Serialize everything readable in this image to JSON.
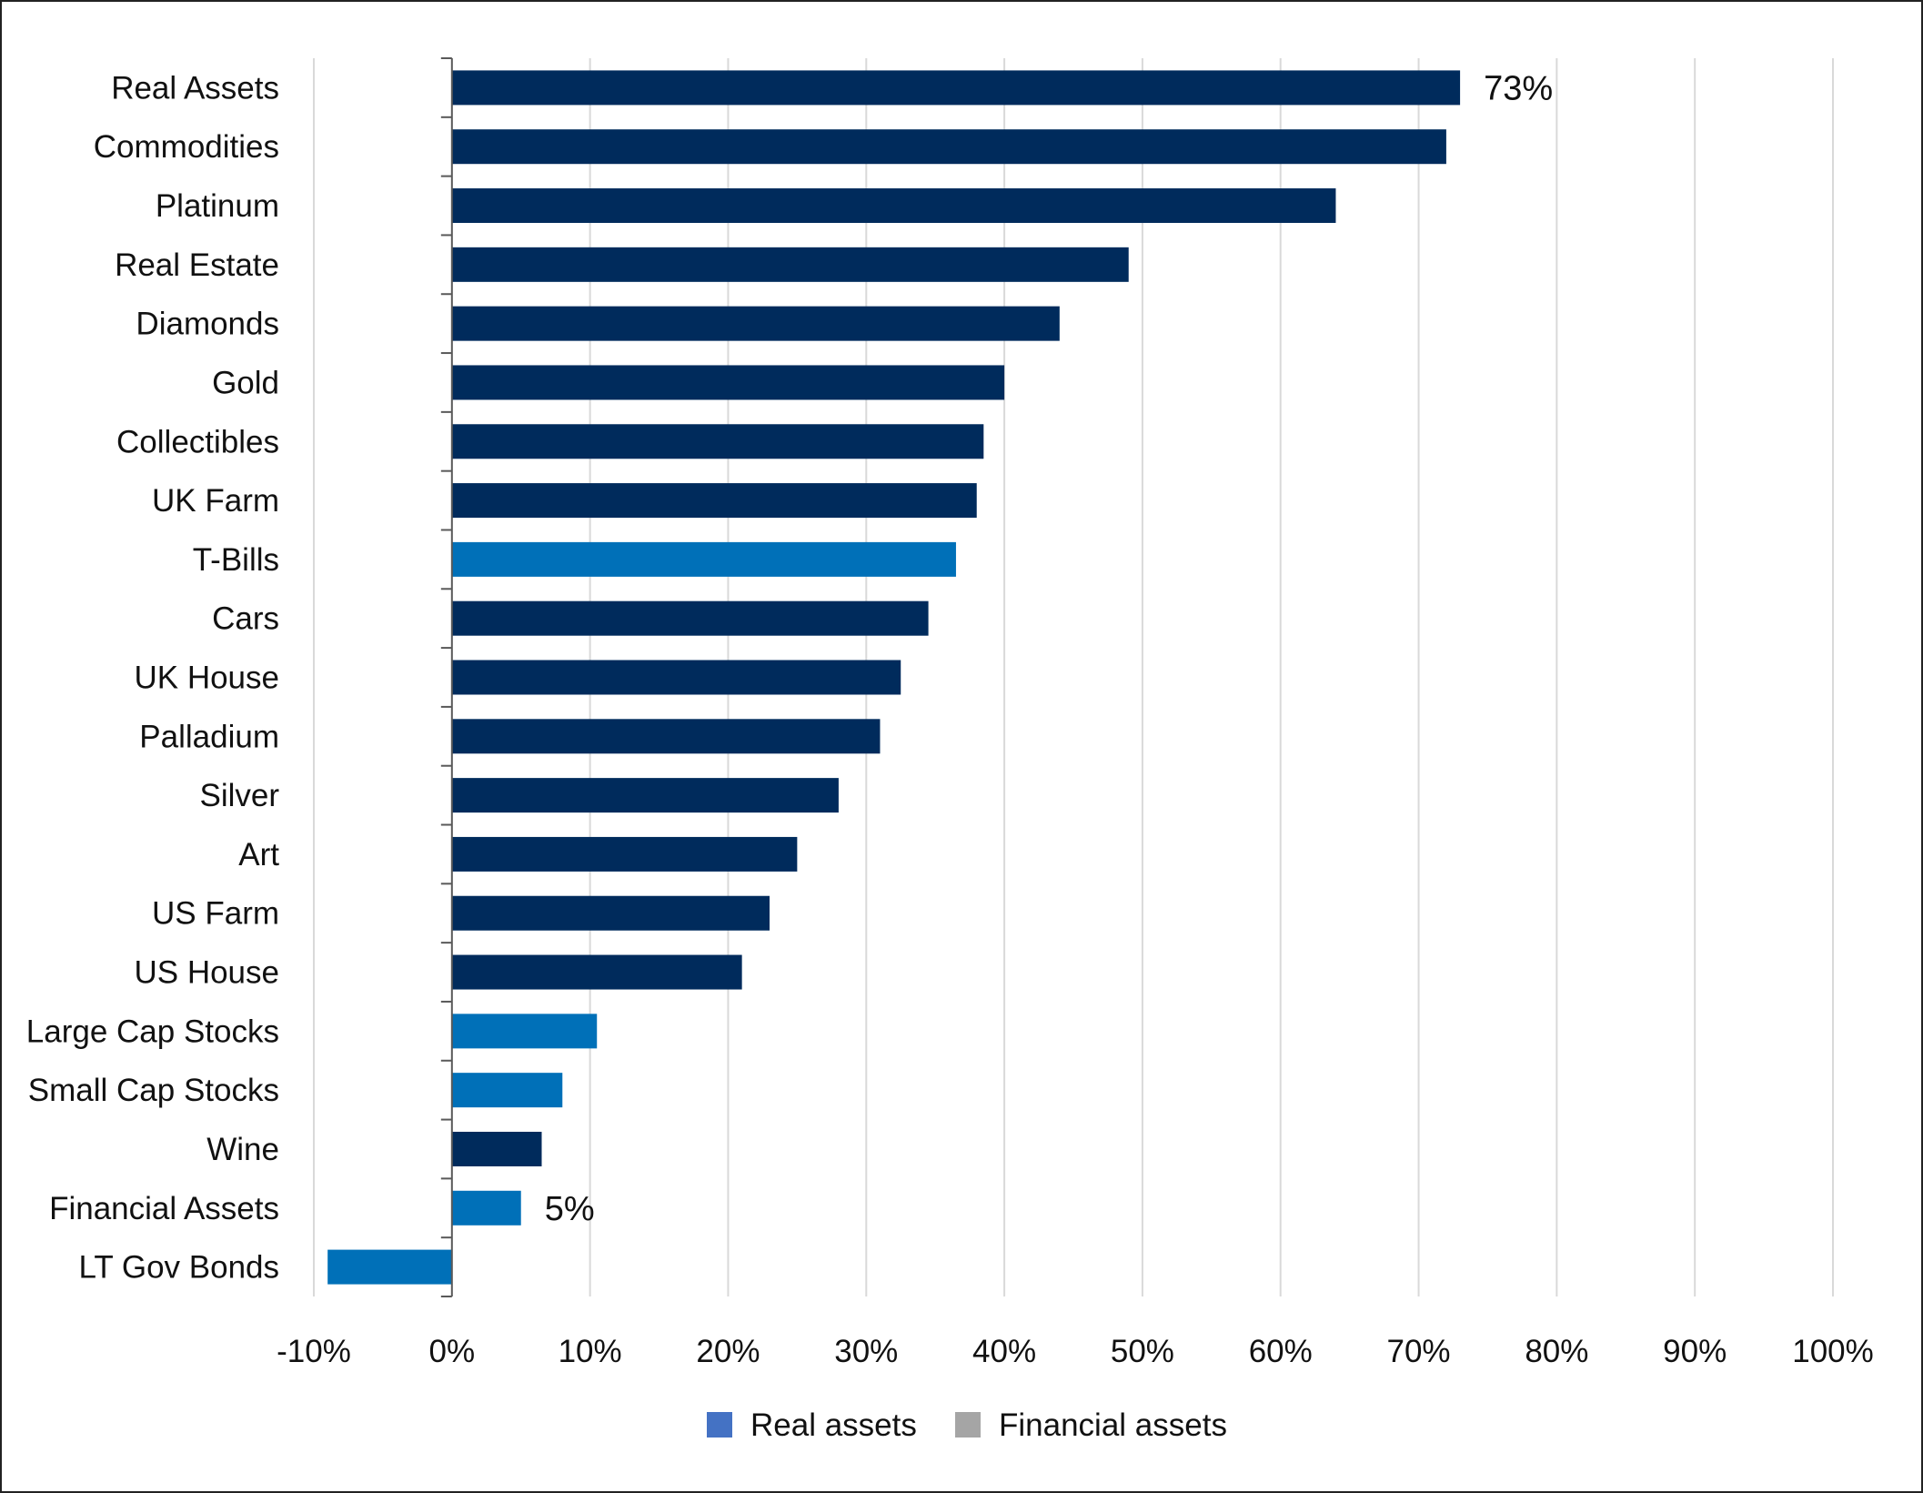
{
  "chart_data": {
    "type": "bar",
    "orientation": "horizontal",
    "title": "",
    "xlabel": "",
    "ylabel": "",
    "xlim": [
      -0.1,
      1.0
    ],
    "x_tick_step": 0.1,
    "x_tick_format": "percent",
    "x_ticks": [
      "-10%",
      "0%",
      "10%",
      "20%",
      "30%",
      "40%",
      "50%",
      "60%",
      "70%",
      "80%",
      "90%",
      "100%"
    ],
    "grid": "vertical",
    "legend_position": "bottom",
    "categories": [
      "Real Assets",
      "Commodities",
      "Platinum",
      "Real Estate",
      "Diamonds",
      "Gold",
      "Collectibles",
      "UK Farm",
      "T-Bills",
      "Cars",
      "UK House",
      "Palladium",
      "Silver",
      "Art",
      "US Farm",
      "US House",
      "Large Cap Stocks",
      "Small Cap Stocks",
      "Wine",
      "Financial Assets",
      "LT Gov Bonds"
    ],
    "values": [
      0.73,
      0.72,
      0.64,
      0.49,
      0.44,
      0.4,
      0.385,
      0.38,
      0.365,
      0.345,
      0.325,
      0.31,
      0.28,
      0.25,
      0.23,
      0.21,
      0.105,
      0.08,
      0.065,
      0.05,
      -0.09
    ],
    "group": [
      "real",
      "real",
      "real",
      "real",
      "real",
      "real",
      "real",
      "real",
      "financial",
      "real",
      "real",
      "real",
      "real",
      "real",
      "real",
      "real",
      "financial",
      "financial",
      "real",
      "financial",
      "financial"
    ],
    "data_labels": [
      {
        "category": "Real Assets",
        "text": "73%"
      },
      {
        "category": "Financial Assets",
        "text": "5%"
      }
    ],
    "legend": [
      {
        "label": "Real assets",
        "color": "#4472c4"
      },
      {
        "label": "Financial assets",
        "color": "#a5a5a5"
      }
    ],
    "colors": {
      "real": "#002b5c",
      "financial": "#0070b8",
      "grid": "#d9d9d9",
      "axis": "#595959",
      "text": "#111111"
    }
  }
}
